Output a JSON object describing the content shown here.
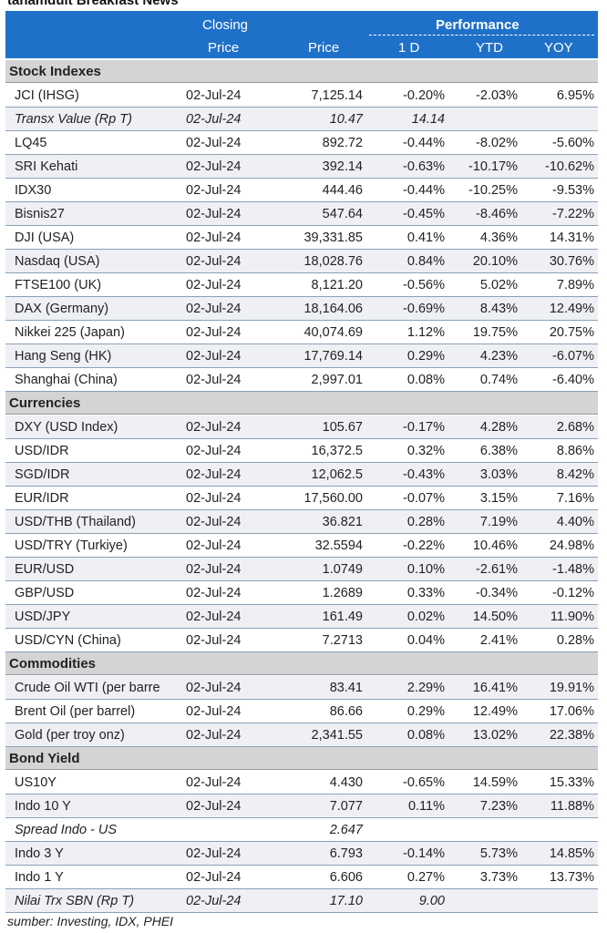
{
  "header": {
    "title": "tanamduit Breakfast News",
    "columns": {
      "closing": "Closing",
      "performance": "Performance",
      "closing_price": "Price",
      "price": "Price",
      "d1": "1 D",
      "ytd": "YTD",
      "yoy": "YOY"
    }
  },
  "table": {
    "sections": [
      {
        "name": "Stock Indexes",
        "rows": [
          {
            "label": "JCI (IHSG)",
            "date": "02-Jul-24",
            "price": "7,125.14",
            "d1": "-0.20%",
            "ytd": "-2.03%",
            "yoy": "6.95%"
          },
          {
            "label": "Transx Value (Rp T)",
            "date": "02-Jul-24",
            "price": "10.47",
            "d1": "14.14",
            "italic": true
          },
          {
            "label": "LQ45",
            "date": "02-Jul-24",
            "price": "892.72",
            "d1": "-0.44%",
            "ytd": "-8.02%",
            "yoy": "-5.60%"
          },
          {
            "label": "SRI Kehati",
            "date": "02-Jul-24",
            "price": "392.14",
            "d1": "-0.63%",
            "ytd": "-10.17%",
            "yoy": "-10.62%"
          },
          {
            "label": "IDX30",
            "date": "02-Jul-24",
            "price": "444.46",
            "d1": "-0.44%",
            "ytd": "-10.25%",
            "yoy": "-9.53%"
          },
          {
            "label": "Bisnis27",
            "date": "02-Jul-24",
            "price": "547.64",
            "d1": "-0.45%",
            "ytd": "-8.46%",
            "yoy": "-7.22%"
          },
          {
            "label": "DJI (USA)",
            "date": "02-Jul-24",
            "price": "39,331.85",
            "d1": "0.41%",
            "ytd": "4.36%",
            "yoy": "14.31%"
          },
          {
            "label": "Nasdaq (USA)",
            "date": "02-Jul-24",
            "price": "18,028.76",
            "d1": "0.84%",
            "ytd": "20.10%",
            "yoy": "30.76%"
          },
          {
            "label": "FTSE100 (UK)",
            "date": "02-Jul-24",
            "price": "8,121.20",
            "d1": "-0.56%",
            "ytd": "5.02%",
            "yoy": "7.89%"
          },
          {
            "label": "DAX (Germany)",
            "date": "02-Jul-24",
            "price": "18,164.06",
            "d1": "-0.69%",
            "ytd": "8.43%",
            "yoy": "12.49%"
          },
          {
            "label": "Nikkei 225 (Japan)",
            "date": "02-Jul-24",
            "price": "40,074.69",
            "d1": "1.12%",
            "ytd": "19.75%",
            "yoy": "20.75%"
          },
          {
            "label": "Hang Seng (HK)",
            "date": "02-Jul-24",
            "price": "17,769.14",
            "d1": "0.29%",
            "ytd": "4.23%",
            "yoy": "-6.07%"
          },
          {
            "label": "Shanghai (China)",
            "date": "02-Jul-24",
            "price": "2,997.01",
            "d1": "0.08%",
            "ytd": "0.74%",
            "yoy": "-6.40%"
          }
        ]
      },
      {
        "name": "Currencies",
        "rows": [
          {
            "label": "DXY (USD Index)",
            "date": "02-Jul-24",
            "price": "105.67",
            "d1": "-0.17%",
            "ytd": "4.28%",
            "yoy": "2.68%"
          },
          {
            "label": "USD/IDR",
            "date": "02-Jul-24",
            "price": "16,372.5",
            "d1": "0.32%",
            "ytd": "6.38%",
            "yoy": "8.86%"
          },
          {
            "label": "SGD/IDR",
            "date": "02-Jul-24",
            "price": "12,062.5",
            "d1": "-0.43%",
            "ytd": "3.03%",
            "yoy": "8.42%"
          },
          {
            "label": "EUR/IDR",
            "date": "02-Jul-24",
            "price": "17,560.00",
            "d1": "-0.07%",
            "ytd": "3.15%",
            "yoy": "7.16%"
          },
          {
            "label": "USD/THB (Thailand)",
            "date": "02-Jul-24",
            "price": "36.821",
            "d1": "0.28%",
            "ytd": "7.19%",
            "yoy": "4.40%"
          },
          {
            "label": "USD/TRY (Turkiye)",
            "date": "02-Jul-24",
            "price": "32.5594",
            "d1": "-0.22%",
            "ytd": "10.46%",
            "yoy": "24.98%"
          },
          {
            "label": "EUR/USD",
            "date": "02-Jul-24",
            "price": "1.0749",
            "d1": "0.10%",
            "ytd": "-2.61%",
            "yoy": "-1.48%"
          },
          {
            "label": "GBP/USD",
            "date": "02-Jul-24",
            "price": "1.2689",
            "d1": "0.33%",
            "ytd": "-0.34%",
            "yoy": "-0.12%"
          },
          {
            "label": "USD/JPY",
            "date": "02-Jul-24",
            "price": "161.49",
            "d1": "0.02%",
            "ytd": "14.50%",
            "yoy": "11.90%"
          },
          {
            "label": "USD/CYN (China)",
            "date": "02-Jul-24",
            "price": "7.2713",
            "d1": "0.04%",
            "ytd": "2.41%",
            "yoy": "0.28%"
          }
        ]
      },
      {
        "name": "Commodities",
        "rows": [
          {
            "label": "Crude Oil WTI (per barre",
            "date": "02-Jul-24",
            "price": "83.41",
            "d1": "2.29%",
            "ytd": "16.41%",
            "yoy": "19.91%"
          },
          {
            "label": "Brent Oil (per barrel)",
            "date": "02-Jul-24",
            "price": "86.66",
            "d1": "0.29%",
            "ytd": "12.49%",
            "yoy": "17.06%"
          },
          {
            "label": "Gold (per troy onz)",
            "date": "02-Jul-24",
            "price": "2,341.55",
            "d1": "0.08%",
            "ytd": "13.02%",
            "yoy": "22.38%"
          }
        ]
      },
      {
        "name": "Bond Yield",
        "rows": [
          {
            "label": "US10Y",
            "date": "02-Jul-24",
            "price": "4.430",
            "d1": "-0.65%",
            "ytd": "14.59%",
            "yoy": "15.33%"
          },
          {
            "label": "Indo 10 Y",
            "date": "02-Jul-24",
            "price": "7.077",
            "d1": "0.11%",
            "ytd": "7.23%",
            "yoy": "11.88%"
          },
          {
            "label": "Spread Indo - US",
            "price": "2.647",
            "italic": true
          },
          {
            "label": "Indo 3 Y",
            "date": "02-Jul-24",
            "price": "6.793",
            "d1": "-0.14%",
            "ytd": "5.73%",
            "yoy": "14.85%"
          },
          {
            "label": "Indo 1 Y",
            "date": "02-Jul-24",
            "price": "6.606",
            "d1": "0.27%",
            "ytd": "3.73%",
            "yoy": "13.73%"
          },
          {
            "label": "Nilai Trx SBN (Rp T)",
            "date": "02-Jul-24",
            "price": "17.10",
            "d1": "9.00",
            "italic": true
          }
        ]
      }
    ]
  },
  "footer": {
    "source": "sumber: Investing, IDX, PHEI"
  }
}
